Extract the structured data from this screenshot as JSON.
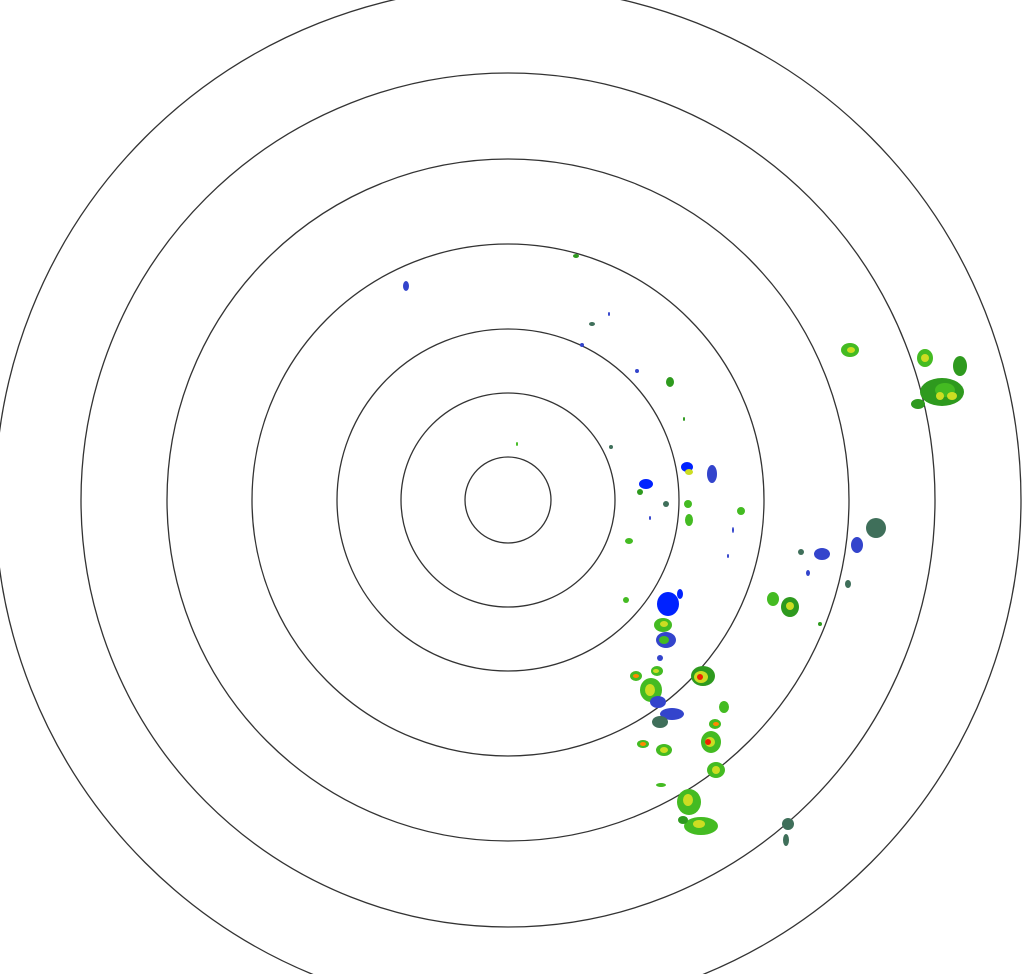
{
  "radar": {
    "ring_count": 7,
    "ring_color": "#333333",
    "background": "#ffffff",
    "reflectivity_colors": {
      "weak_dark": "#3f6f5a",
      "weak_blue": "#3344cc",
      "bright_blue": "#0022ff",
      "light_green": "#44bb22",
      "green": "#2e9a1e",
      "yellow": "#ccdd22",
      "orange": "#ff8800",
      "red": "#ee2200"
    }
  }
}
